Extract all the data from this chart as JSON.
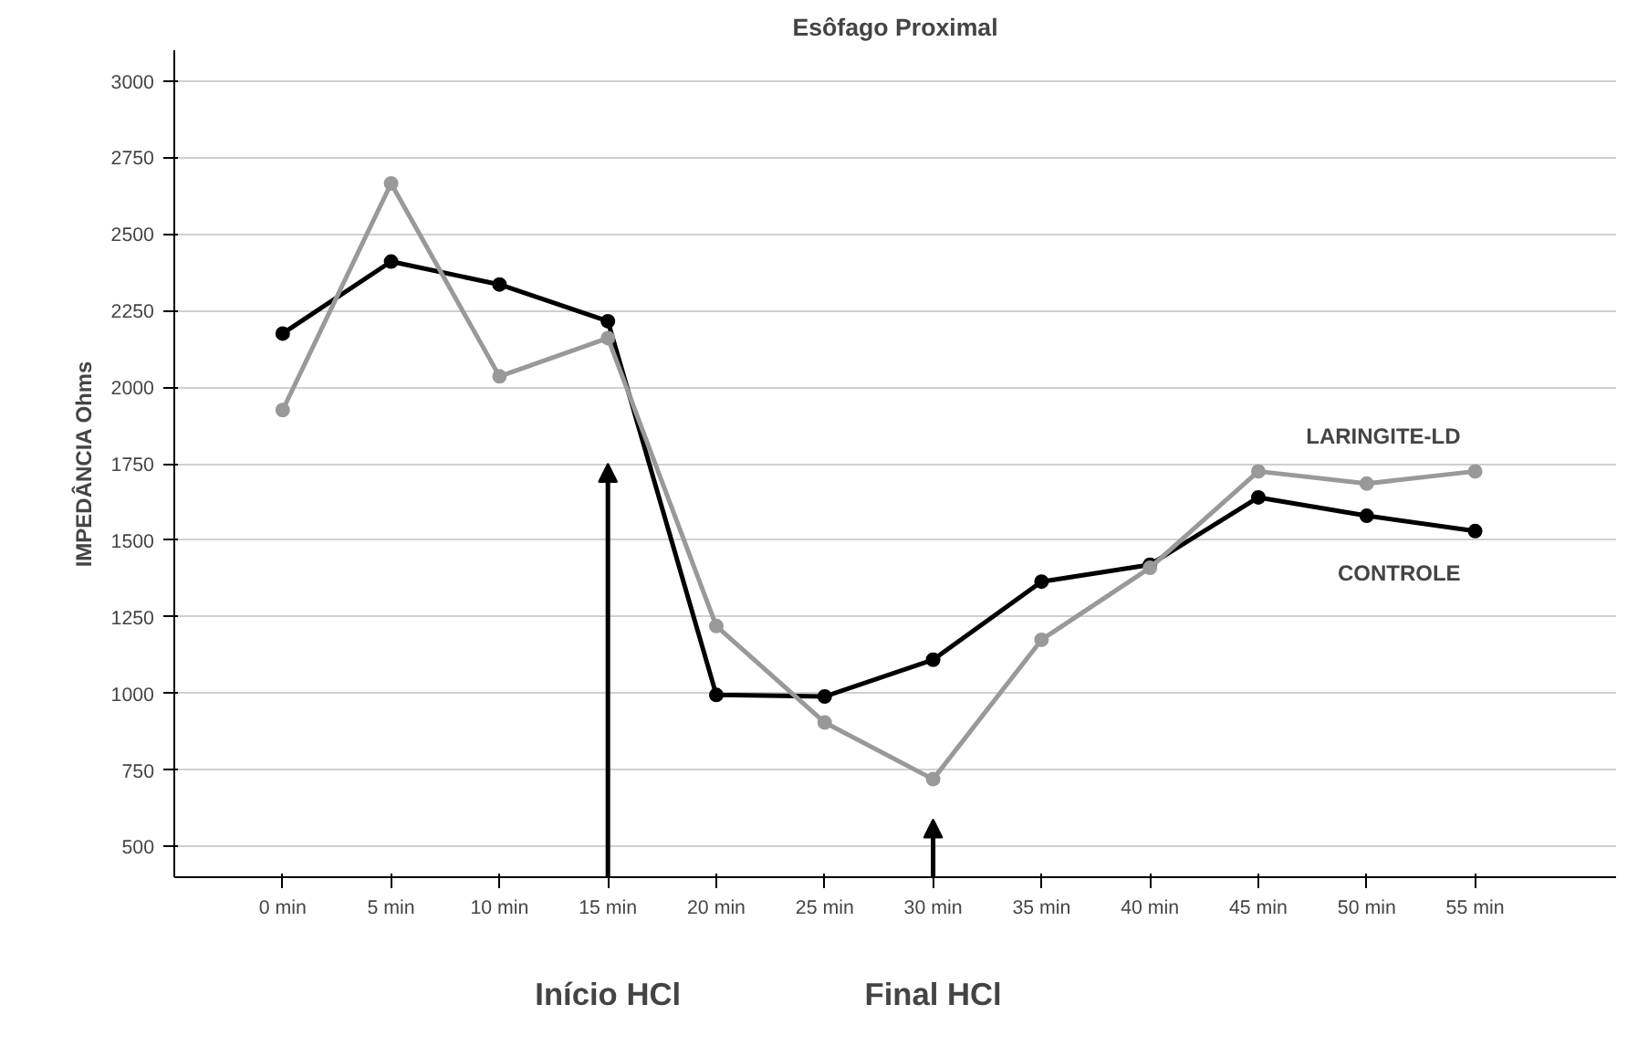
{
  "chart_data": {
    "type": "line",
    "title": "Esôfago Proximal",
    "ylabel": "IMPEDÂNCIA Ohms",
    "categories": [
      "0 min",
      "5 min",
      "10 min",
      "15 min",
      "20 min",
      "25 min",
      "30 min",
      "35 min",
      "40 min",
      "45 min",
      "50 min",
      "55 min"
    ],
    "series": [
      {
        "name": "CONTROLE",
        "color": "#000000",
        "values": [
          2175,
          2410,
          2335,
          2215,
          995,
          990,
          1110,
          1365,
          1420,
          1640,
          1580,
          1530
        ]
      },
      {
        "name": "LARINGITE-LD",
        "color": "#999999",
        "values": [
          1925,
          2665,
          2035,
          2160,
          1220,
          905,
          720,
          1175,
          1410,
          1725,
          1685,
          1725
        ]
      }
    ],
    "ylim": [
      400,
      3100
    ],
    "yticks": [
      500,
      750,
      1000,
      1250,
      1500,
      1750,
      2000,
      2250,
      2500,
      2750,
      3000
    ],
    "grid": "y",
    "legend": false,
    "marker": "circle",
    "line_style": "solid",
    "annotations": [
      "Início HCl",
      "Final HCl"
    ]
  }
}
